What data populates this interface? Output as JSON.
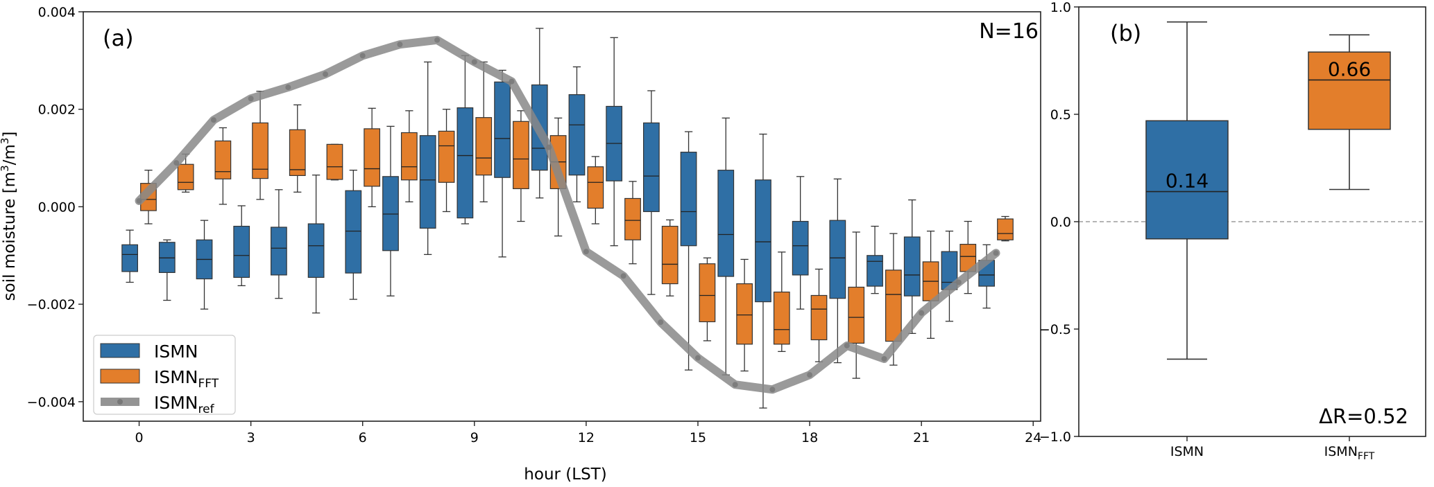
{
  "colors": {
    "ismn": "#2f6fa5",
    "fft": "#e37e2b",
    "ref": "#888888",
    "box_edge": "#333333"
  },
  "panel_a": {
    "label": "(a)",
    "note": "N=16",
    "legend": {
      "ismn": "ISMN",
      "fft_base": "ISMN",
      "fft_sub": "FFT",
      "ref_base": "ISMN",
      "ref_sub": "ref"
    }
  },
  "panel_b": {
    "label": "(b)",
    "note": "ΔR=0.52",
    "xlabel_fft_base": "ISMN",
    "xlabel_fft_sub": "FFT"
  },
  "chart_data": [
    {
      "type": "box",
      "title": "",
      "xlabel": "hour (LST)",
      "ylabel": "soil moisture [m³/m³]",
      "ylabel_parts": {
        "prefix": "soil moisture [m",
        "sup1": "3",
        "mid": "/m",
        "sup2": "3",
        "suffix": "]"
      },
      "xlim": [
        -1.5,
        24.2
      ],
      "ylim": [
        -0.0044,
        0.004
      ],
      "xticks": [
        0,
        3,
        6,
        9,
        12,
        15,
        18,
        21,
        24
      ],
      "yticks": [
        -0.004,
        -0.002,
        0.0,
        0.002,
        0.004
      ],
      "ytick_labels": [
        "−0.004",
        "−0.002",
        "0.000",
        "0.002",
        "0.004"
      ],
      "series": [
        {
          "name": "ISMN",
          "offset": -0.25,
          "boxes": [
            {
              "hour": 0,
              "wlo": -0.00155,
              "q1": -0.00133,
              "med": -0.00098,
              "q3": -0.00078,
              "whi": -0.00048
            },
            {
              "hour": 1,
              "wlo": -0.00192,
              "q1": -0.00135,
              "med": -0.00105,
              "q3": -0.00073,
              "whi": -0.00068
            },
            {
              "hour": 2,
              "wlo": -0.0021,
              "q1": -0.00148,
              "med": -0.00108,
              "q3": -0.00068,
              "whi": -0.00028
            },
            {
              "hour": 3,
              "wlo": -0.00162,
              "q1": -0.00145,
              "med": -0.001,
              "q3": -0.0004,
              "whi": 2e-05
            },
            {
              "hour": 4,
              "wlo": -0.00188,
              "q1": -0.0014,
              "med": -0.00085,
              "q3": -0.00042,
              "whi": 0.00035
            },
            {
              "hour": 5,
              "wlo": -0.00218,
              "q1": -0.00145,
              "med": -0.0008,
              "q3": -0.00035,
              "whi": 0.00065
            },
            {
              "hour": 6,
              "wlo": -0.0019,
              "q1": -0.00136,
              "med": -0.0005,
              "q3": 0.00033,
              "whi": 0.00075
            },
            {
              "hour": 7,
              "wlo": -0.00183,
              "q1": -0.0009,
              "med": -0.00015,
              "q3": 0.00062,
              "whi": 0.00165
            },
            {
              "hour": 8,
              "wlo": -0.00098,
              "q1": -0.00044,
              "med": 0.00055,
              "q3": 0.00146,
              "whi": 0.00297
            },
            {
              "hour": 9,
              "wlo": -0.00035,
              "q1": -0.00023,
              "med": 0.00105,
              "q3": 0.00203,
              "whi": 0.0031
            },
            {
              "hour": 10,
              "wlo": -0.00103,
              "q1": 0.0006,
              "med": 0.0014,
              "q3": 0.00256,
              "whi": 0.0028
            },
            {
              "hour": 11,
              "wlo": 0.00018,
              "q1": 0.00075,
              "med": 0.0012,
              "q3": 0.0025,
              "whi": 0.00366
            },
            {
              "hour": 12,
              "wlo": 0.0001,
              "q1": 0.00065,
              "med": 0.00168,
              "q3": 0.0023,
              "whi": 0.00287
            },
            {
              "hour": 13,
              "wlo": -0.0008,
              "q1": 0.00053,
              "med": 0.0013,
              "q3": 0.00206,
              "whi": 0.00347
            },
            {
              "hour": 14,
              "wlo": -0.0018,
              "q1": -0.0001,
              "med": 0.00063,
              "q3": 0.00172,
              "whi": 0.00238
            },
            {
              "hour": 15,
              "wlo": -0.00335,
              "q1": -0.0008,
              "med": -0.0001,
              "q3": 0.00112,
              "whi": 0.00154
            },
            {
              "hour": 16,
              "wlo": -0.00345,
              "q1": -0.00143,
              "med": -0.00057,
              "q3": 0.00075,
              "whi": 0.00182
            },
            {
              "hour": 17,
              "wlo": -0.00413,
              "q1": -0.00195,
              "med": -0.00072,
              "q3": 0.00055,
              "whi": 0.00149
            },
            {
              "hour": 18,
              "wlo": -0.0021,
              "q1": -0.0014,
              "med": -0.0008,
              "q3": -0.0003,
              "whi": 0.00062
            },
            {
              "hour": 19,
              "wlo": -0.0032,
              "q1": -0.00188,
              "med": -0.00105,
              "q3": -0.00028,
              "whi": 0.00057
            },
            {
              "hour": 20,
              "wlo": -0.00178,
              "q1": -0.00163,
              "med": -0.00112,
              "q3": -0.001,
              "whi": -0.0004
            },
            {
              "hour": 21,
              "wlo": -0.0026,
              "q1": -0.00183,
              "med": -0.0014,
              "q3": -0.00062,
              "whi": 0.00014
            },
            {
              "hour": 22,
              "wlo": -0.00235,
              "q1": -0.0017,
              "med": -0.00155,
              "q3": -0.00092,
              "whi": -0.0005
            },
            {
              "hour": 23,
              "wlo": -0.00208,
              "q1": -0.00163,
              "med": -0.0014,
              "q3": -0.0011,
              "whi": -0.00078
            }
          ]
        },
        {
          "name": "ISMN_FFT",
          "offset": 0.25,
          "boxes": [
            {
              "hour": 0,
              "wlo": -0.00035,
              "q1": -8e-05,
              "med": 0.00015,
              "q3": 0.00048,
              "whi": 0.00075
            },
            {
              "hour": 1,
              "wlo": 0.0003,
              "q1": 0.00035,
              "med": 0.0005,
              "q3": 0.00087,
              "whi": 0.00108
            },
            {
              "hour": 2,
              "wlo": 5e-05,
              "q1": 0.00057,
              "med": 0.00072,
              "q3": 0.00135,
              "whi": 0.00162
            },
            {
              "hour": 3,
              "wlo": 0.00015,
              "q1": 0.00058,
              "med": 0.00077,
              "q3": 0.00172,
              "whi": 0.00237
            },
            {
              "hour": 4,
              "wlo": 0.0003,
              "q1": 0.00064,
              "med": 0.00076,
              "q3": 0.00158,
              "whi": 0.00209
            },
            {
              "hour": 5,
              "wlo": 0.00055,
              "q1": 0.00056,
              "med": 0.00082,
              "q3": 0.00128,
              "whi": 0.00128
            },
            {
              "hour": 6,
              "wlo": 0.0,
              "q1": 0.00042,
              "med": 0.00078,
              "q3": 0.0016,
              "whi": 0.00202
            },
            {
              "hour": 7,
              "wlo": 0.0001,
              "q1": 0.00055,
              "med": 0.00082,
              "q3": 0.00152,
              "whi": 0.00197
            },
            {
              "hour": 8,
              "wlo": -0.0001,
              "q1": 0.0005,
              "med": 0.00125,
              "q3": 0.00155,
              "whi": 0.002
            },
            {
              "hour": 9,
              "wlo": 0.0001,
              "q1": 0.00065,
              "med": 0.001,
              "q3": 0.00183,
              "whi": 0.00297
            },
            {
              "hour": 10,
              "wlo": -0.0003,
              "q1": 0.00037,
              "med": 0.00098,
              "q3": 0.00175,
              "whi": 0.00197
            },
            {
              "hour": 11,
              "wlo": -0.0006,
              "q1": 0.00037,
              "med": 0.00092,
              "q3": 0.00146,
              "whi": 0.00182
            },
            {
              "hour": 12,
              "wlo": -0.00035,
              "q1": -3e-05,
              "med": 0.0005,
              "q3": 0.00082,
              "whi": 0.00103
            },
            {
              "hour": 13,
              "wlo": -0.00117,
              "q1": -0.00068,
              "med": -0.00028,
              "q3": 0.00017,
              "whi": 0.00052
            },
            {
              "hour": 14,
              "wlo": -0.00183,
              "q1": -0.00158,
              "med": -0.00118,
              "q3": -0.0004,
              "whi": -0.00027
            },
            {
              "hour": 15,
              "wlo": -0.00275,
              "q1": -0.00236,
              "med": -0.00182,
              "q3": -0.00117,
              "whi": -0.00105
            },
            {
              "hour": 16,
              "wlo": -0.00337,
              "q1": -0.00282,
              "med": -0.00222,
              "q3": -0.00158,
              "whi": -0.00108
            },
            {
              "hour": 17,
              "wlo": -0.00297,
              "q1": -0.00282,
              "med": -0.00252,
              "q3": -0.00175,
              "whi": -0.00093
            },
            {
              "hour": 18,
              "wlo": -0.00318,
              "q1": -0.00273,
              "med": -0.0021,
              "q3": -0.00182,
              "whi": -0.00128
            },
            {
              "hour": 19,
              "wlo": -0.00352,
              "q1": -0.0028,
              "med": -0.00227,
              "q3": -0.00165,
              "whi": -0.00052
            },
            {
              "hour": 20,
              "wlo": -0.00325,
              "q1": -0.00276,
              "med": -0.0018,
              "q3": -0.0013,
              "whi": -0.00055
            },
            {
              "hour": 21,
              "wlo": -0.0027,
              "q1": -0.00193,
              "med": -0.00153,
              "q3": -0.00113,
              "whi": -0.0005
            },
            {
              "hour": 22,
              "wlo": -0.00178,
              "q1": -0.00133,
              "med": -0.00102,
              "q3": -0.00077,
              "whi": -0.0003
            },
            {
              "hour": 23,
              "wlo": -0.0007,
              "q1": -0.00068,
              "med": -0.00055,
              "q3": -0.00025,
              "whi": -0.0002
            }
          ]
        }
      ],
      "line": {
        "name": "ISMN_ref",
        "x": [
          0,
          1,
          2,
          3,
          4,
          5,
          6,
          7,
          8,
          9,
          10,
          11,
          12,
          13,
          14,
          15,
          16,
          17,
          18,
          19,
          20,
          21,
          22,
          23
        ],
        "y": [
          0.00012,
          0.0009,
          0.00178,
          0.00222,
          0.00245,
          0.00272,
          0.0031,
          0.00333,
          0.00342,
          0.00297,
          0.00257,
          0.00122,
          -0.00092,
          -0.00142,
          -0.00237,
          -0.0031,
          -0.00365,
          -0.00375,
          -0.00345,
          -0.00285,
          -0.00312,
          -0.00218,
          -0.00155,
          -0.00095
        ]
      },
      "legend_position": "lower-left"
    },
    {
      "type": "box",
      "title": "",
      "ylim": [
        -1.0,
        1.0
      ],
      "yticks": [
        -1.0,
        -0.5,
        0.0,
        0.5,
        1.0
      ],
      "ytick_labels": [
        "−1.0",
        "−0.5",
        "0.0",
        "0.5",
        "1.0"
      ],
      "categories": [
        "ISMN",
        "ISMN_FFT"
      ],
      "boxes": [
        {
          "name": "ISMN",
          "wlo": -0.64,
          "q1": -0.08,
          "med": 0.14,
          "q3": 0.47,
          "whi": 0.93,
          "label": "0.14"
        },
        {
          "name": "ISMN_FFT",
          "wlo": 0.15,
          "q1": 0.43,
          "med": 0.66,
          "q3": 0.79,
          "whi": 0.87,
          "label": "0.66"
        }
      ],
      "reference_line": 0.0
    }
  ]
}
